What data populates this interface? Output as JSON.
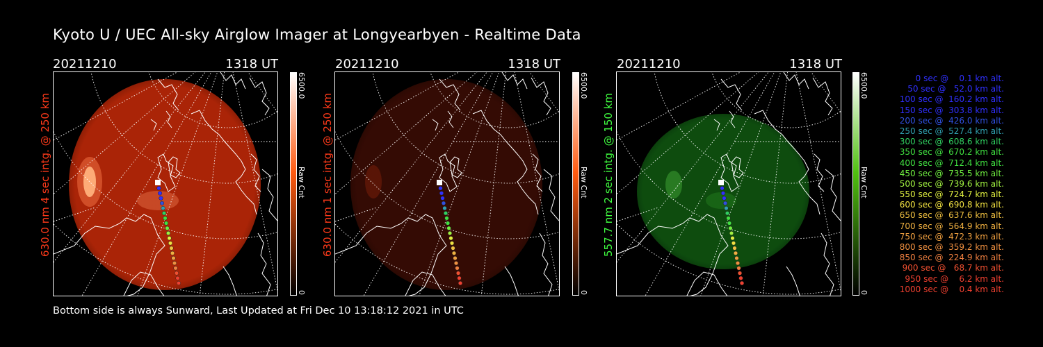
{
  "title": "Kyoto U / UEC All-sky Airglow Imager at Longyearbyen - Realtime Data",
  "footer": "Bottom side is always Sunward, Last Updated at Fri Dec 10 13:18:12 2021 in UTC",
  "panels": [
    {
      "date": "20211210",
      "ut": "1318 UT",
      "label": "630.0 nm 4 sec intg. @ 250 km",
      "label_color": "#ff3a1a",
      "cbar_max": "6500.0",
      "cbar_unit": "Raw Cnt",
      "cbar_min": "0",
      "cbar_color": "#ff5a10",
      "image_color": "#c82a08",
      "image_opacity": 0.85
    },
    {
      "date": "20211210",
      "ut": "1318 UT",
      "label": "630.0 nm 1 sec intg. @ 250 km",
      "label_color": "#ff3a1a",
      "cbar_max": "6500.0",
      "cbar_unit": "Raw Cnt",
      "cbar_min": "0",
      "cbar_color": "#ff5a10",
      "image_color": "#3a0c04",
      "image_opacity": 0.9
    },
    {
      "date": "20211210",
      "ut": "1318 UT",
      "label": "557.7 nm 2 sec intg. @ 150 km",
      "label_color": "#40ff40",
      "cbar_max": "6500.0",
      "cbar_unit": "Raw Cnt",
      "cbar_min": "0",
      "cbar_color": "#50c010",
      "image_color": "#0f5410",
      "image_opacity": 0.9
    }
  ],
  "trajectory": [
    {
      "text": "   0 sec @    0.1 km alt.",
      "color": "#3030ff"
    },
    {
      "text": "  50 sec @   52.0 km alt.",
      "color": "#3030ff"
    },
    {
      "text": " 100 sec @  160.2 km alt.",
      "color": "#3030ff"
    },
    {
      "text": " 150 sec @  303.8 km alt.",
      "color": "#3030ff"
    },
    {
      "text": " 200 sec @  426.0 km alt.",
      "color": "#3050e0"
    },
    {
      "text": " 250 sec @  527.4 km alt.",
      "color": "#30a0b0"
    },
    {
      "text": " 300 sec @  608.6 km alt.",
      "color": "#30d060"
    },
    {
      "text": " 350 sec @  670.2 km alt.",
      "color": "#40e040"
    },
    {
      "text": " 400 sec @  712.4 km alt.",
      "color": "#40e040"
    },
    {
      "text": " 450 sec @  735.5 km alt.",
      "color": "#70f040"
    },
    {
      "text": " 500 sec @  739.6 km alt.",
      "color": "#a0f040"
    },
    {
      "text": " 550 sec @  724.7 km alt.",
      "color": "#e0f040"
    },
    {
      "text": " 600 sec @  690.8 km alt.",
      "color": "#f0e040"
    },
    {
      "text": " 650 sec @  637.6 km alt.",
      "color": "#f0c040"
    },
    {
      "text": " 700 sec @  564.9 km alt.",
      "color": "#f0b040"
    },
    {
      "text": " 750 sec @  472.3 km alt.",
      "color": "#f0a040"
    },
    {
      "text": " 800 sec @  359.2 km alt.",
      "color": "#f09040"
    },
    {
      "text": " 850 sec @  224.9 km alt.",
      "color": "#f08040"
    },
    {
      "text": " 900 sec @   68.7 km alt.",
      "color": "#f05030"
    },
    {
      "text": " 950 sec @    6.2 km alt.",
      "color": "#f04030"
    },
    {
      "text": "1000 sec @    0.4 km alt.",
      "color": "#f04030"
    }
  ]
}
